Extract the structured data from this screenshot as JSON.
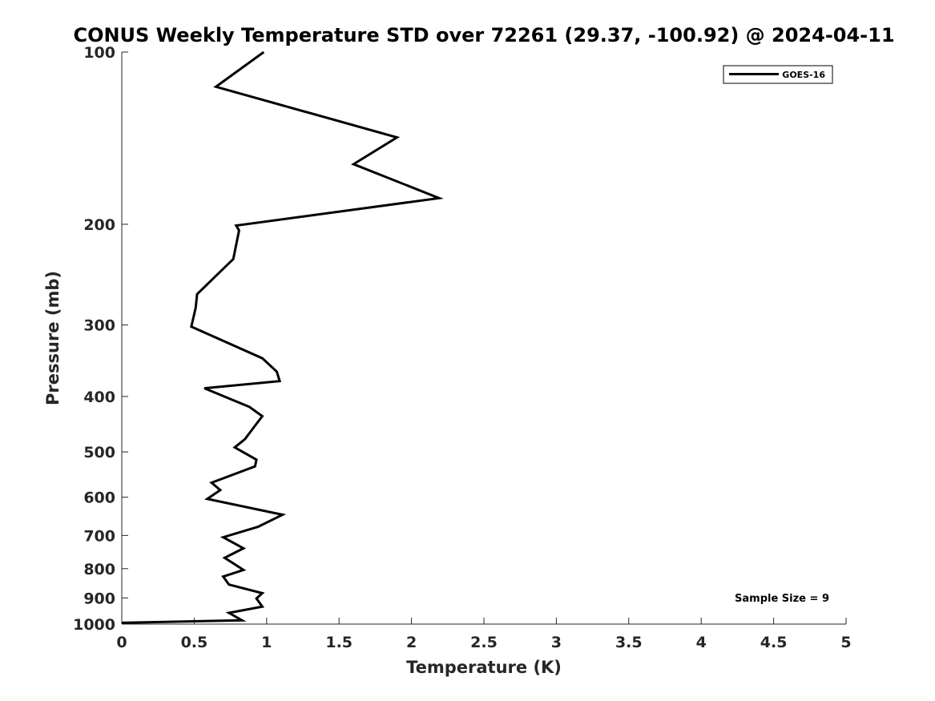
{
  "chart_data": {
    "type": "line",
    "title": "CONUS Weekly Temperature STD over 72261 (29.37, -100.92) @ 2024-04-11",
    "xlabel": "Temperature (K)",
    "ylabel": "Pressure (mb)",
    "xlim": [
      0,
      5
    ],
    "ylim": [
      100,
      1000
    ],
    "y_scale": "log",
    "y_direction": "reversed",
    "grid": false,
    "legend_placement": "top-right",
    "x_ticks": [
      "0",
      "0.5",
      "1",
      "1.5",
      "2",
      "2.5",
      "3",
      "3.5",
      "4",
      "4.5",
      "5"
    ],
    "y_ticks": [
      "100",
      "200",
      "300",
      "400",
      "500",
      "600",
      "700",
      "800",
      "900",
      "1000"
    ],
    "annotation": "Sample Size = 9",
    "series": [
      {
        "name": "GOES-16",
        "color": "#000000",
        "x": [
          0.98,
          0.65,
          1.9,
          1.6,
          2.19,
          0.79,
          0.81,
          0.77,
          0.52,
          0.51,
          0.48,
          0.97,
          1.07,
          1.09,
          0.57,
          0.88,
          0.97,
          0.92,
          0.85,
          0.78,
          0.93,
          0.92,
          0.62,
          0.68,
          0.59,
          1.11,
          0.94,
          0.7,
          0.84,
          0.71,
          0.84,
          0.7,
          0.74,
          0.97,
          0.93,
          0.97,
          0.74,
          0.83,
          0.0
        ],
        "y": [
          100,
          115,
          141,
          157,
          180,
          201,
          205,
          230,
          265,
          280,
          302,
          343,
          362,
          376,
          387,
          417,
          433,
          450,
          475,
          491,
          516,
          530,
          566,
          583,
          604,
          644,
          676,
          705,
          737,
          766,
          804,
          826,
          853,
          883,
          902,
          932,
          956,
          985,
          995
        ]
      }
    ]
  }
}
